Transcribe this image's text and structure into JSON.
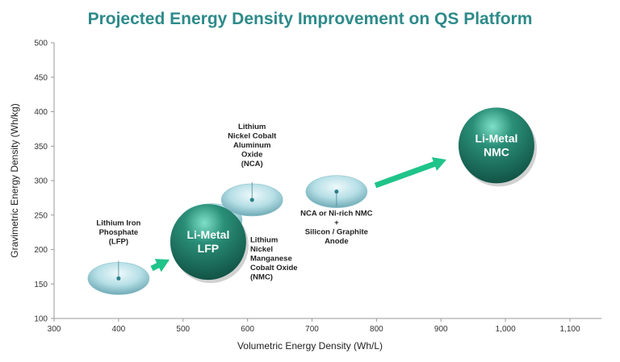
{
  "chart_data": {
    "type": "scatter",
    "title": "Projected Energy Density Improvement on QS Platform",
    "xlabel": "Volumetric Energy Density (Wh/L)",
    "ylabel": "Gravimetric Energy Density (Wh/kg)",
    "xlim": [
      300,
      1100
    ],
    "ylim": [
      100,
      500
    ],
    "x_ticks": [
      "300",
      "400",
      "500",
      "600",
      "700",
      "800",
      "900",
      "1,000",
      "1,100"
    ],
    "y_ticks": [
      "100",
      "150",
      "200",
      "250",
      "300",
      "350",
      "400",
      "450",
      "500"
    ],
    "grid": false,
    "colors": {
      "title": "#2e8a8a",
      "bubble": "#9fd0d8",
      "sphere": "#1f7a66",
      "arrow": "#1fc48a"
    },
    "points": [
      {
        "label": [
          "Lithium Iron",
          "Phosphate",
          "(LFP)"
        ],
        "x": 400,
        "y": 158,
        "style": "bubble"
      },
      {
        "label": [
          "Lithium",
          "Nickel",
          "Manganese",
          "Cobalt Oxide",
          "(NMC)"
        ],
        "x": 544,
        "y": 243,
        "style": "bubble"
      },
      {
        "label": [
          "Lithium",
          "Nickel Cobalt",
          "Aluminum",
          "Oxide",
          "(NCA)"
        ],
        "x": 607,
        "y": 272,
        "style": "bubble"
      },
      {
        "label": [
          "NCA or Ni-rich NMC",
          "+",
          "Silicon / Graphite",
          "Anode"
        ],
        "x": 738,
        "y": 284,
        "style": "bubble"
      },
      {
        "label": [
          "Li-Metal",
          "LFP"
        ],
        "x": 539,
        "y": 211,
        "style": "sphere"
      },
      {
        "label": [
          "Li-Metal",
          "NMC"
        ],
        "x": 986,
        "y": 351,
        "style": "sphere"
      }
    ]
  }
}
